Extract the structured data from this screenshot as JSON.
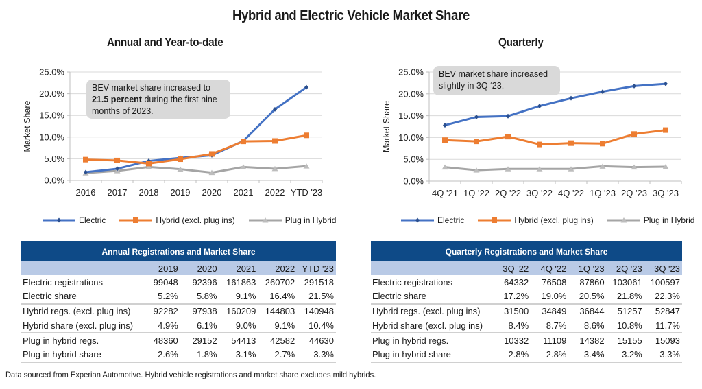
{
  "title": "Hybrid and Electric Vehicle Market Share",
  "colors": {
    "electric": "#4472c4",
    "electric_marker": "#2a4f8f",
    "hybrid": "#ed7d31",
    "plugin": "#a5a5a5",
    "header_dark": "#0e4a87",
    "header_light": "#b9cae6",
    "annotation_bg": "#d9d9d9"
  },
  "chart_data": [
    {
      "type": "line",
      "title": "Annual and Year-to-date",
      "xlabel": "",
      "ylabel": "Market Share",
      "ylim": [
        0,
        25
      ],
      "yticks": [
        "0.0%",
        "5.0%",
        "10.0%",
        "15.0%",
        "20.0%",
        "25.0%"
      ],
      "grid": true,
      "legend": "bottom",
      "categories": [
        "2016",
        "2017",
        "2018",
        "2019",
        "2020",
        "2021",
        "2022",
        "YTD '23"
      ],
      "series": [
        {
          "name": "Electric",
          "marker": "diamond",
          "values": [
            1.9,
            2.7,
            4.5,
            5.2,
            5.8,
            9.1,
            16.4,
            21.5
          ]
        },
        {
          "name": "Hybrid (excl. plug ins)",
          "marker": "square",
          "values": [
            4.8,
            4.6,
            3.9,
            4.9,
            6.1,
            9.0,
            9.1,
            10.4
          ]
        },
        {
          "name": "Plug in Hybrid",
          "marker": "triangle",
          "values": [
            1.7,
            2.2,
            3.1,
            2.6,
            1.8,
            3.1,
            2.7,
            3.3
          ]
        }
      ],
      "annotation": {
        "pre": "BEV market share increased to",
        "bold": "21.5 percent",
        "post": " during the first nine months of 2023."
      }
    },
    {
      "type": "line",
      "title": "Quarterly",
      "xlabel": "",
      "ylabel": "Market Share",
      "ylim": [
        0,
        25
      ],
      "yticks": [
        "0.0%",
        "5.0%",
        "10.0%",
        "15.0%",
        "20.0%",
        "25.0%"
      ],
      "grid": true,
      "legend": "bottom",
      "categories": [
        "4Q '21",
        "1Q '22",
        "2Q '22",
        "3Q '22",
        "4Q '22",
        "1Q '23",
        "2Q '23",
        "3Q '23"
      ],
      "series": [
        {
          "name": "Electric",
          "marker": "diamond",
          "values": [
            12.8,
            14.7,
            14.9,
            17.2,
            19.0,
            20.5,
            21.8,
            22.3
          ]
        },
        {
          "name": "Hybrid (excl. plug ins)",
          "marker": "square",
          "values": [
            9.4,
            9.1,
            10.2,
            8.4,
            8.7,
            8.6,
            10.8,
            11.7
          ]
        },
        {
          "name": "Plug in Hybrid",
          "marker": "triangle",
          "values": [
            3.2,
            2.5,
            2.8,
            2.8,
            2.8,
            3.4,
            3.2,
            3.3
          ]
        }
      ],
      "annotation": {
        "pre": "",
        "bold": "",
        "post": "BEV market share increased slightly in 3Q ‘23."
      }
    },
    {
      "type": "table",
      "title": "Annual Registrations and Market Share",
      "columns": [
        "2019",
        "2020",
        "2021",
        "2022",
        "YTD '23"
      ],
      "rows": [
        {
          "label": "Electric registrations",
          "values": [
            "99048",
            "92396",
            "161863",
            "260702",
            "291518"
          ]
        },
        {
          "label": "Electric share",
          "values": [
            "5.2%",
            "5.8%",
            "9.1%",
            "16.4%",
            "21.5%"
          ]
        },
        {
          "label": "Hybrid regs. (excl. plug ins)",
          "values": [
            "92282",
            "97938",
            "160209",
            "144803",
            "140948"
          ]
        },
        {
          "label": "Hybrid share (excl. plug ins)",
          "values": [
            "4.9%",
            "6.1%",
            "9.0%",
            "9.1%",
            "10.4%"
          ]
        },
        {
          "label": "Plug in hybrid regs.",
          "values": [
            "48360",
            "29152",
            "54413",
            "42582",
            "44630"
          ]
        },
        {
          "label": "Plug in hybrid share",
          "values": [
            "2.6%",
            "1.8%",
            "3.1%",
            "2.7%",
            "3.3%"
          ]
        }
      ]
    },
    {
      "type": "table",
      "title": "Quarterly Registrations and Market Share",
      "columns": [
        "3Q '22",
        "4Q '22",
        "1Q '23",
        "2Q '23",
        "3Q '23"
      ],
      "rows": [
        {
          "label": "Electric registrations",
          "values": [
            "64332",
            "76508",
            "87860",
            "103061",
            "100597"
          ]
        },
        {
          "label": "Electric share",
          "values": [
            "17.2%",
            "19.0%",
            "20.5%",
            "21.8%",
            "22.3%"
          ]
        },
        {
          "label": "Hybrid regs. (excl. plug ins)",
          "values": [
            "31500",
            "34849",
            "36844",
            "51257",
            "52847"
          ]
        },
        {
          "label": "Hybrid share (excl. plug ins)",
          "values": [
            "8.4%",
            "8.7%",
            "8.6%",
            "10.8%",
            "11.7%"
          ]
        },
        {
          "label": "Plug in hybrid regs.",
          "values": [
            "10332",
            "11109",
            "14382",
            "15155",
            "15093"
          ]
        },
        {
          "label": "Plug in hybrid share",
          "values": [
            "2.8%",
            "2.8%",
            "3.4%",
            "3.2%",
            "3.3%"
          ]
        }
      ]
    }
  ],
  "footer": "Data sourced from Experian Automotive. Hybrid vehicle registrations and market share excludes mild hybrids."
}
